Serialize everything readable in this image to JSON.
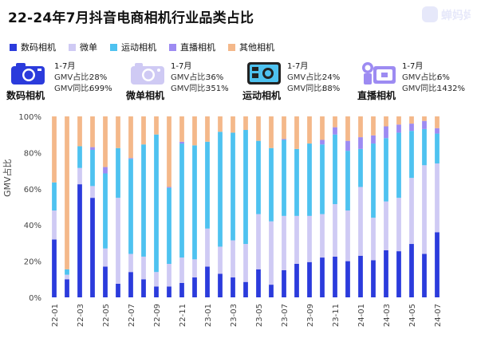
{
  "title": "22-24年7月抖音电商相机行业品类占比",
  "watermark": "蝉妈妈",
  "colors": {
    "digital": "#2b3bdc",
    "micro": "#cfcaf4",
    "action": "#4ec2f0",
    "live": "#9d8bf2",
    "other": "#f4b88a"
  },
  "legend": [
    {
      "label": "数码相机",
      "color": "#2b3bdc"
    },
    {
      "label": "微单",
      "color": "#cfcaf4"
    },
    {
      "label": "运动相机",
      "color": "#4ec2f0"
    },
    {
      "label": "直播相机",
      "color": "#9d8bf2"
    },
    {
      "label": "其他相机",
      "color": "#f4b88a"
    }
  ],
  "cards": [
    {
      "name": "数码相机",
      "icon": "digital-camera-icon",
      "period": "1-7月",
      "gmv_share_label": "GMV占比:",
      "gmv_share": "28%",
      "gmv_yoy_label": "GMV同比:",
      "gmv_yoy": "699%"
    },
    {
      "name": "微单相机",
      "icon": "mirrorless-camera-icon",
      "period": "1-7月",
      "gmv_share_label": "GMV占比:",
      "gmv_share": "36%",
      "gmv_yoy_label": "GMV同比:",
      "gmv_yoy": "351%"
    },
    {
      "name": "运动相机",
      "icon": "action-camera-icon",
      "period": "1-7月",
      "gmv_share_label": "GMV占比:",
      "gmv_share": "24%",
      "gmv_yoy_label": "GMV同比:",
      "gmv_yoy": "88%"
    },
    {
      "name": "直播相机",
      "icon": "live-camera-icon",
      "period": "1-7月",
      "gmv_share_label": "GMV占比:",
      "gmv_share": "6%",
      "gmv_yoy_label": "GMV同比:",
      "gmv_yoy": "1432%"
    }
  ],
  "chart_data": {
    "type": "bar",
    "stacked": true,
    "ylabel": "GMV占比",
    "ylim": [
      0,
      100
    ],
    "yticks": [
      "0%",
      "20%",
      "40%",
      "60%",
      "80%",
      "100%"
    ],
    "grid": false,
    "legend_position": "top-left",
    "categories": [
      "22-01",
      "22-02",
      "22-03",
      "22-04",
      "22-05",
      "22-06",
      "22-07",
      "22-08",
      "22-09",
      "22-10",
      "22-11",
      "22-12",
      "23-01",
      "23-02",
      "23-03",
      "23-04",
      "23-05",
      "23-06",
      "23-07",
      "23-08",
      "23-09",
      "23-10",
      "23-11",
      "23-12",
      "24-01",
      "24-02",
      "24-03",
      "24-04",
      "24-05",
      "24-06",
      "24-07"
    ],
    "xtick_labels": [
      "22-01",
      "22-03",
      "22-05",
      "22-07",
      "22-09",
      "22-11",
      "23-01",
      "23-03",
      "23-05",
      "23-07",
      "23-09",
      "23-11",
      "24-01",
      "24-03",
      "24-05",
      "24-07"
    ],
    "series": [
      {
        "name": "数码相机",
        "values": [
          32,
          10,
          62.5,
          55,
          17,
          7.5,
          14,
          10,
          6,
          6,
          8,
          11,
          17,
          13,
          11,
          8.5,
          15.5,
          7,
          15,
          18.5,
          19.5,
          22,
          22.5,
          20,
          23,
          20.5,
          26,
          25.5,
          29.5,
          24,
          36
        ]
      },
      {
        "name": "微单",
        "values": [
          16,
          2.5,
          9,
          6.5,
          10,
          47.5,
          10,
          12.5,
          8,
          12.5,
          14,
          10,
          21,
          15,
          20.5,
          21,
          30.5,
          35,
          30,
          26.5,
          25.5,
          24,
          29,
          28,
          38,
          23.5,
          27,
          29.5,
          36.5,
          49,
          38
        ]
      },
      {
        "name": "运动相机",
        "values": [
          15.5,
          3,
          12,
          20,
          41.5,
          27.5,
          52.5,
          62,
          76,
          42,
          63,
          63,
          48,
          63.5,
          59.5,
          63,
          40.5,
          40.5,
          42,
          37,
          40,
          38.5,
          38.5,
          33,
          21,
          41,
          35,
          36,
          26,
          20,
          16.5
        ]
      },
      {
        "name": "直播相机",
        "values": [
          0,
          0,
          0,
          1.5,
          3.5,
          0,
          0.5,
          0,
          0,
          0.5,
          1,
          0,
          0,
          0,
          0,
          0,
          0,
          0,
          0.5,
          0,
          0,
          2.5,
          4,
          5.5,
          6.5,
          4.5,
          6.5,
          4.5,
          4,
          4.5,
          3
        ]
      },
      {
        "name": "其他相机",
        "values": [
          36.5,
          84.5,
          16.5,
          17,
          28,
          17.5,
          23,
          15.5,
          10,
          39,
          14,
          16,
          14,
          8.5,
          9,
          7.5,
          13.5,
          17.5,
          12.5,
          18,
          15,
          13,
          6,
          13.5,
          11.5,
          10.5,
          5.5,
          4.5,
          4,
          2.5,
          6.5
        ]
      }
    ]
  }
}
